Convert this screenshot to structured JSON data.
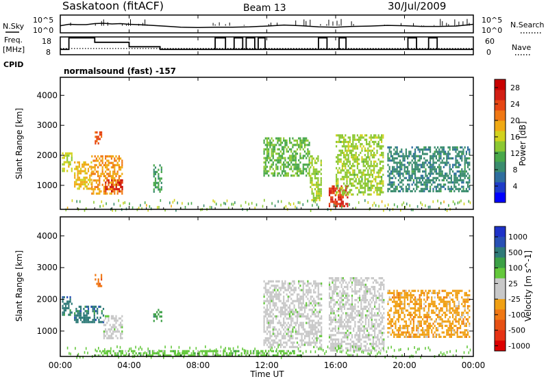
{
  "header": {
    "station": "Saskatoon (fitACF)",
    "beam": "Beam 13",
    "date": "30/Jul/2009"
  },
  "noise_panel": {
    "left_label": "N.Sky",
    "left_ticks": [
      "10^5",
      "10^0"
    ],
    "right_ticks": [
      "10^5",
      "10^0"
    ],
    "right_label": "N.Search"
  },
  "freq_panel": {
    "left_label_line1": "Freq.",
    "left_label_line2": "[MHz]",
    "left_ticks": [
      "18",
      "8"
    ],
    "right_ticks": [
      "60",
      "0"
    ],
    "right_label": "Nave"
  },
  "cpid": {
    "label": "CPID",
    "text": "normalsound (fast) -157"
  },
  "colors": {
    "power_scale": [
      "#0000ff",
      "#1e3cc8",
      "#2e6e9e",
      "#3a8c6e",
      "#49a84a",
      "#8cc832",
      "#d2d21e",
      "#f0aa14",
      "#f07814",
      "#e64614",
      "#d21e14",
      "#c80000"
    ],
    "velocity_scale": [
      "#1e32c8",
      "#2850b4",
      "#2e7a78",
      "#3ca046",
      "#64c83c",
      "#c8c8c8",
      "#c8c8c8",
      "#f0a014",
      "#f07814",
      "#e65014",
      "#e63214",
      "#dc0000"
    ]
  },
  "chart_data": [
    {
      "type": "line",
      "title": "Saskatoon (fitACF)",
      "ylabel": "N.Sky",
      "y_ticks": [
        "10^5",
        "10^0"
      ],
      "x_ticks": [
        "00:00",
        "04:00",
        "08:00",
        "12:00",
        "16:00",
        "20:00",
        "00:00"
      ],
      "xlim_hours": [
        0,
        24
      ],
      "series": [
        {
          "name": "N.Sky",
          "x": [
            0,
            0.5,
            1,
            1.5,
            2,
            2.5,
            3,
            3.5,
            4,
            4.5,
            5,
            6,
            7,
            8,
            9,
            10,
            11,
            12,
            13,
            14,
            15,
            16,
            17,
            18,
            19,
            20,
            21,
            22,
            23,
            24
          ],
          "y": [
            2.0,
            2.4,
            2.3,
            2.3,
            2.6,
            2.7,
            2.5,
            2.6,
            2.4,
            2.3,
            2.2,
            1.9,
            1.6,
            1.5,
            1.6,
            1.6,
            1.7,
            1.9,
            2.2,
            2.0,
            1.7,
            1.6,
            1.8,
            1.9,
            2.1,
            2.0,
            1.8,
            1.8,
            1.9,
            2.4
          ]
        }
      ]
    },
    {
      "type": "line",
      "ylabel": "Freq. [MHz]",
      "ylim": [
        8,
        18
      ],
      "y2lim": [
        0,
        60
      ],
      "series": [
        {
          "name": "Freq.",
          "x": [
            0,
            0.4,
            0.5,
            1.5,
            2.0,
            4.0,
            5.8,
            10.0,
            10.8,
            11.4,
            13.0,
            14.8,
            19.8,
            20.0,
            21.0,
            22.4,
            23.6,
            24
          ],
          "y": [
            11,
            11,
            17.5,
            17.5,
            15,
            12.5,
            11,
            11,
            11,
            11,
            11,
            11,
            11,
            11,
            11,
            11,
            11,
            11
          ]
        },
        {
          "name": "Nave",
          "x": [
            0,
            23.6,
            24
          ],
          "y": [
            21,
            21,
            21
          ]
        }
      ]
    },
    {
      "type": "heatmap",
      "title": "Beam 13",
      "ylabel": "Slant Range [km]",
      "ylim": [
        200,
        4600
      ],
      "y_ticks": [
        1000,
        2000,
        3000,
        4000
      ],
      "xlabel": "Time UT",
      "xlim_hours": [
        0,
        24
      ],
      "colorbar_label": "Power [dB]",
      "colorbar_ticks": [
        4,
        8,
        12,
        16,
        20,
        24,
        28
      ],
      "colorbar_range": [
        0,
        30
      ],
      "regions": [
        {
          "t0": 0.1,
          "t1": 0.7,
          "r0": 1500,
          "r1": 2100,
          "v": 16
        },
        {
          "t0": 0.8,
          "t1": 1.8,
          "r0": 900,
          "r1": 1800,
          "v": 18
        },
        {
          "t0": 1.8,
          "t1": 3.6,
          "r0": 700,
          "r1": 2000,
          "v": 20
        },
        {
          "t0": 2.6,
          "t1": 3.6,
          "r0": 800,
          "r1": 1200,
          "v": 27
        },
        {
          "t0": 2.0,
          "t1": 2.4,
          "r0": 2400,
          "r1": 2800,
          "v": 24
        },
        {
          "t0": 5.4,
          "t1": 5.9,
          "r0": 800,
          "r1": 1700,
          "v": 10
        },
        {
          "t0": 11.8,
          "t1": 14.5,
          "r0": 1300,
          "r1": 2600,
          "v": 12
        },
        {
          "t0": 14.5,
          "t1": 15.2,
          "r0": 500,
          "r1": 2000,
          "v": 14
        },
        {
          "t0": 15.6,
          "t1": 16.7,
          "r0": 300,
          "r1": 1000,
          "v": 26
        },
        {
          "t0": 16.0,
          "t1": 18.8,
          "r0": 700,
          "r1": 2700,
          "v": 14
        },
        {
          "t0": 19.0,
          "t1": 23.8,
          "r0": 800,
          "r1": 2300,
          "v": 8
        }
      ]
    },
    {
      "type": "heatmap",
      "ylabel": "Slant Range [km]",
      "ylim": [
        200,
        4600
      ],
      "y_ticks": [
        1000,
        2000,
        3000,
        4000
      ],
      "xlabel": "Time UT",
      "x_ticks": [
        "00:00",
        "04:00",
        "08:00",
        "12:00",
        "16:00",
        "20:00",
        "00:00"
      ],
      "xlim_hours": [
        0,
        24
      ],
      "colorbar_label": "Velocity [m s^-1]",
      "colorbar_ticks": [
        "1000",
        "500",
        "100",
        "25",
        "-25",
        "-100",
        "-500",
        "-1000"
      ],
      "regions": [
        {
          "t0": 0.1,
          "t1": 0.7,
          "r0": 1500,
          "r1": 2100,
          "v": 100
        },
        {
          "t0": 0.8,
          "t1": 2.5,
          "r0": 1300,
          "r1": 1800,
          "v": 200
        },
        {
          "t0": 2.5,
          "t1": 3.6,
          "r0": 800,
          "r1": 1500,
          "v": 0
        },
        {
          "t0": 2.0,
          "t1": 2.4,
          "r0": 2400,
          "r1": 2800,
          "v": -300
        },
        {
          "t0": 5.4,
          "t1": 5.9,
          "r0": 1300,
          "r1": 1700,
          "v": 60
        },
        {
          "t0": 11.8,
          "t1": 15.2,
          "r0": 500,
          "r1": 2600,
          "v": 0
        },
        {
          "t0": 15.6,
          "t1": 18.8,
          "r0": 400,
          "r1": 2700,
          "v": 0
        },
        {
          "t0": 19.0,
          "t1": 23.8,
          "r0": 800,
          "r1": 2300,
          "v": -50
        },
        {
          "t0": 2.0,
          "t1": 14.0,
          "r0": 200,
          "r1": 400,
          "v": 50
        }
      ]
    }
  ]
}
